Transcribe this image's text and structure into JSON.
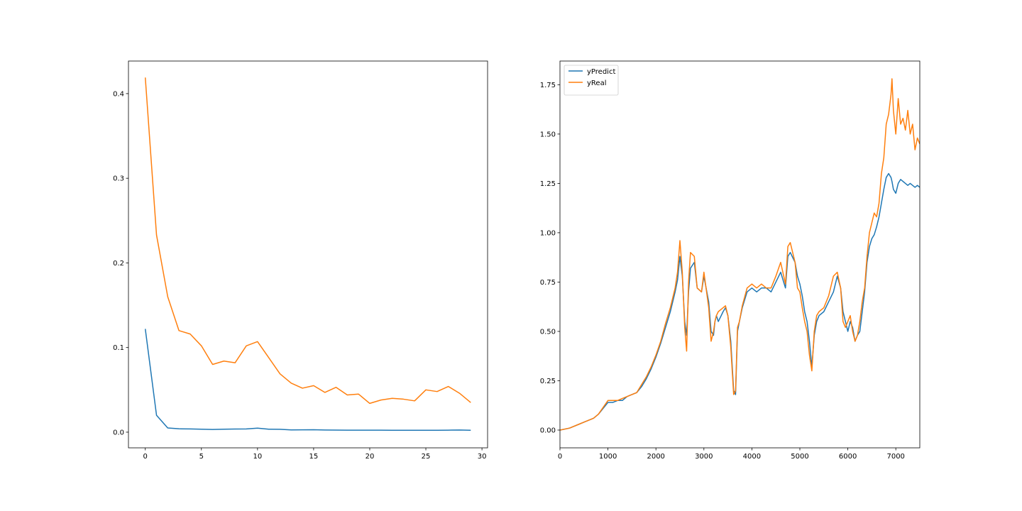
{
  "chart_data": [
    {
      "type": "line",
      "title": "",
      "xlabel": "",
      "ylabel": "",
      "xlim": [
        -1.5,
        30.5
      ],
      "ylim": [
        -0.0185,
        0.4385
      ],
      "xticks": [
        0,
        5,
        10,
        15,
        20,
        25,
        30
      ],
      "xtick_labels": [
        "0",
        "5",
        "10",
        "15",
        "20",
        "25",
        "30"
      ],
      "yticks": [
        0.0,
        0.1,
        0.2,
        0.3,
        0.4
      ],
      "ytick_labels": [
        "0.0",
        "0.1",
        "0.2",
        "0.3",
        "0.4"
      ],
      "grid": false,
      "legend": null,
      "x": [
        0,
        1,
        2,
        3,
        4,
        5,
        6,
        7,
        8,
        9,
        10,
        11,
        12,
        13,
        14,
        15,
        16,
        17,
        18,
        19,
        20,
        21,
        22,
        23,
        24,
        25,
        26,
        27,
        28,
        29
      ],
      "series": [
        {
          "color": "#1f77b4",
          "values": [
            0.122,
            0.02,
            0.005,
            0.004,
            0.0038,
            0.0035,
            0.0032,
            0.0035,
            0.0037,
            0.0038,
            0.0048,
            0.0035,
            0.0034,
            0.0027,
            0.0028,
            0.0029,
            0.0026,
            0.0025,
            0.0024,
            0.0024,
            0.0024,
            0.0024,
            0.0023,
            0.0023,
            0.0022,
            0.0022,
            0.0022,
            0.0024,
            0.0026,
            0.0023
          ]
        },
        {
          "color": "#ff7f0e",
          "values": [
            0.419,
            0.233,
            0.16,
            0.12,
            0.116,
            0.102,
            0.08,
            0.084,
            0.082,
            0.102,
            0.107,
            0.088,
            0.069,
            0.058,
            0.052,
            0.055,
            0.047,
            0.053,
            0.044,
            0.045,
            0.034,
            0.038,
            0.04,
            0.039,
            0.037,
            0.05,
            0.048,
            0.054,
            0.046,
            0.035
          ]
        }
      ]
    },
    {
      "type": "line",
      "title": "",
      "xlabel": "",
      "ylabel": "",
      "xlim": [
        0,
        7500
      ],
      "ylim": [
        -0.09,
        1.87
      ],
      "xticks": [
        0,
        1000,
        2000,
        3000,
        4000,
        5000,
        6000,
        7000
      ],
      "xtick_labels": [
        "0",
        "1000",
        "2000",
        "3000",
        "4000",
        "5000",
        "6000",
        "7000"
      ],
      "yticks": [
        0.0,
        0.25,
        0.5,
        0.75,
        1.0,
        1.25,
        1.5,
        1.75
      ],
      "ytick_labels": [
        "0.00",
        "0.25",
        "0.50",
        "0.75",
        "1.00",
        "1.25",
        "1.50",
        "1.75"
      ],
      "grid": false,
      "legend": "top-left",
      "x": [
        0,
        200,
        400,
        500,
        600,
        700,
        800,
        1000,
        1100,
        1200,
        1300,
        1400,
        1600,
        1700,
        1800,
        1900,
        2000,
        2100,
        2200,
        2300,
        2400,
        2450,
        2500,
        2550,
        2600,
        2640,
        2680,
        2720,
        2800,
        2860,
        2950,
        3000,
        3100,
        3150,
        3200,
        3230,
        3260,
        3300,
        3400,
        3450,
        3500,
        3560,
        3620,
        3660,
        3700,
        3740,
        3800,
        3900,
        4000,
        4100,
        4200,
        4300,
        4400,
        4500,
        4600,
        4700,
        4750,
        4800,
        4900,
        4950,
        5000,
        5050,
        5100,
        5150,
        5200,
        5250,
        5300,
        5350,
        5400,
        5500,
        5600,
        5700,
        5780,
        5850,
        5900,
        5950,
        6000,
        6050,
        6100,
        6150,
        6200,
        6250,
        6300,
        6350,
        6400,
        6450,
        6500,
        6550,
        6600,
        6650,
        6700,
        6750,
        6800,
        6850,
        6900,
        6920,
        6950,
        7000,
        7050,
        7100,
        7150,
        7200,
        7250,
        7300,
        7350,
        7400,
        7450,
        7500
      ],
      "series": [
        {
          "name": "yPredict",
          "color": "#1f77b4",
          "values": [
            0.0,
            0.01,
            0.03,
            0.04,
            0.05,
            0.06,
            0.08,
            0.14,
            0.14,
            0.15,
            0.15,
            0.17,
            0.19,
            0.22,
            0.26,
            0.31,
            0.37,
            0.44,
            0.52,
            0.6,
            0.7,
            0.76,
            0.88,
            0.78,
            0.55,
            0.48,
            0.7,
            0.82,
            0.85,
            0.72,
            0.7,
            0.78,
            0.65,
            0.5,
            0.48,
            0.55,
            0.58,
            0.55,
            0.6,
            0.62,
            0.58,
            0.45,
            0.2,
            0.18,
            0.5,
            0.55,
            0.62,
            0.7,
            0.72,
            0.7,
            0.72,
            0.72,
            0.7,
            0.75,
            0.8,
            0.72,
            0.88,
            0.9,
            0.85,
            0.78,
            0.74,
            0.68,
            0.6,
            0.55,
            0.45,
            0.32,
            0.48,
            0.55,
            0.58,
            0.6,
            0.65,
            0.7,
            0.78,
            0.72,
            0.6,
            0.55,
            0.5,
            0.55,
            0.52,
            0.45,
            0.48,
            0.5,
            0.6,
            0.7,
            0.85,
            0.93,
            0.97,
            0.99,
            1.03,
            1.08,
            1.15,
            1.22,
            1.28,
            1.3,
            1.28,
            1.26,
            1.22,
            1.2,
            1.25,
            1.27,
            1.26,
            1.25,
            1.24,
            1.25,
            1.24,
            1.23,
            1.24,
            1.23
          ]
        },
        {
          "name": "yReal",
          "color": "#ff7f0e",
          "values": [
            0.0,
            0.01,
            0.03,
            0.04,
            0.05,
            0.06,
            0.08,
            0.15,
            0.15,
            0.15,
            0.16,
            0.17,
            0.19,
            0.23,
            0.27,
            0.32,
            0.38,
            0.45,
            0.54,
            0.62,
            0.72,
            0.8,
            0.96,
            0.8,
            0.52,
            0.4,
            0.75,
            0.9,
            0.88,
            0.72,
            0.7,
            0.8,
            0.62,
            0.45,
            0.5,
            0.55,
            0.58,
            0.6,
            0.62,
            0.63,
            0.58,
            0.42,
            0.18,
            0.2,
            0.52,
            0.55,
            0.63,
            0.72,
            0.74,
            0.72,
            0.74,
            0.72,
            0.72,
            0.78,
            0.85,
            0.74,
            0.93,
            0.95,
            0.85,
            0.72,
            0.7,
            0.62,
            0.55,
            0.5,
            0.38,
            0.3,
            0.5,
            0.58,
            0.6,
            0.62,
            0.68,
            0.78,
            0.8,
            0.72,
            0.55,
            0.52,
            0.55,
            0.58,
            0.5,
            0.45,
            0.48,
            0.55,
            0.65,
            0.72,
            0.88,
            1.0,
            1.05,
            1.1,
            1.08,
            1.15,
            1.3,
            1.38,
            1.55,
            1.6,
            1.7,
            1.78,
            1.62,
            1.5,
            1.68,
            1.55,
            1.58,
            1.52,
            1.62,
            1.5,
            1.55,
            1.42,
            1.48,
            1.45
          ]
        }
      ]
    }
  ]
}
